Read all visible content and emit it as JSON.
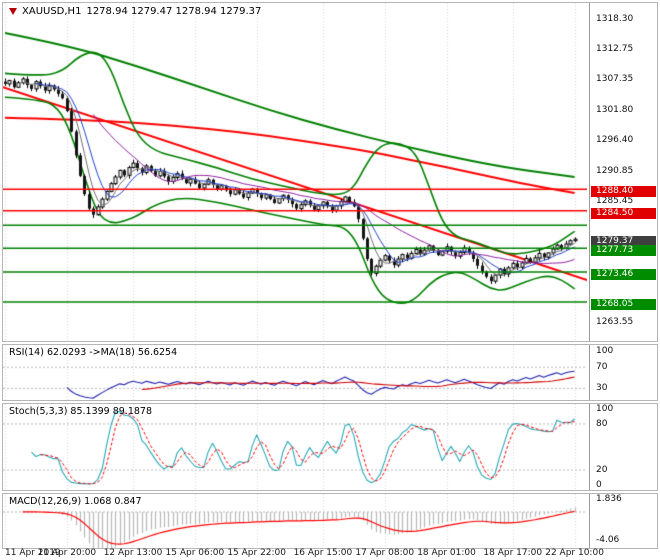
{
  "window": {
    "title": "XAUUSD,H1",
    "ohlc": "1278.94 1279.47 1278.94 1279.37"
  },
  "colors": {
    "bull": "#ffffff",
    "bear": "#141414",
    "wick": "#000000",
    "bollinger": "#008000",
    "ma_green": "#008000",
    "ma_red": "#ff0000",
    "trendline_red": "#ff0000",
    "level_red": "#ff0000",
    "level_green": "#008000",
    "ma_fast_blue": "#2040d0",
    "ma_fast_purple": "#9020a0",
    "ma_fast_gray": "#707070",
    "rsi_line": "#2020b0",
    "rsi_ma": "#d00000",
    "stoch_main": "#2aa8b8",
    "stoch_signal": "#ff0000",
    "macd_hist": "#b8b8b8",
    "macd_signal": "#ff0000",
    "grid": "#d8d8d8",
    "dotted_level": "#b8b8b8"
  },
  "price_axis": {
    "range_top": 1322,
    "range_bottom": 1261,
    "plain_labels": [
      "1318.30",
      "1312.75",
      "1307.35",
      "1301.80",
      "1296.40",
      "1290.85",
      "1285.45",
      "1263.55"
    ],
    "badges": [
      {
        "label": "1288.40",
        "price": 1288.4,
        "type": "red"
      },
      {
        "label": "1284.50",
        "price": 1284.5,
        "type": "red"
      },
      {
        "label": "1279.37",
        "price": 1279.37,
        "type": "dark"
      },
      {
        "label": "1277.73",
        "price": 1277.73,
        "type": "green"
      },
      {
        "label": "1273.46",
        "price": 1273.46,
        "type": "green"
      },
      {
        "label": "1268.05",
        "price": 1268.05,
        "type": "green"
      }
    ]
  },
  "time_axis": {
    "labels": [
      "11 Apr 2019",
      "11 Apr 20:00",
      "12 Apr 13:00",
      "15 Apr 06:00",
      "15 Apr 22:00",
      "16 Apr 15:00",
      "17 Apr 08:00",
      "18 Apr 01:00",
      "18 Apr 17:00",
      "22 Apr 10:00"
    ]
  },
  "chart_data": [
    {
      "type": "candlestick",
      "title": "XAUUSD,H1",
      "symbol": "XAUUSD",
      "timeframe": "H1",
      "ylim": [
        1261,
        1322
      ],
      "closes": [
        1307.4,
        1308.0,
        1306.8,
        1307.6,
        1308.3,
        1307.2,
        1306.5,
        1307.8,
        1307.0,
        1306.2,
        1307.1,
        1306.4,
        1305.6,
        1304.8,
        1302.5,
        1298.8,
        1294.5,
        1290.8,
        1287.5,
        1284.9,
        1283.8,
        1285.2,
        1286.6,
        1288.0,
        1289.4,
        1290.6,
        1291.8,
        1290.9,
        1292.3,
        1293.1,
        1292.2,
        1291.4,
        1292.6,
        1291.7,
        1290.8,
        1291.6,
        1290.7,
        1289.8,
        1290.5,
        1291.2,
        1290.3,
        1289.5,
        1290.2,
        1289.4,
        1288.6,
        1289.3,
        1290.1,
        1289.2,
        1288.4,
        1289.0,
        1288.2,
        1287.5,
        1288.3,
        1287.6,
        1286.9,
        1287.7,
        1288.4,
        1287.6,
        1286.8,
        1287.4,
        1286.6,
        1285.9,
        1286.7,
        1287.3,
        1286.5,
        1285.7,
        1284.9,
        1285.6,
        1286.3,
        1285.5,
        1284.7,
        1285.4,
        1286.1,
        1285.3,
        1284.6,
        1285.4,
        1286.2,
        1287.0,
        1286.1,
        1285.3,
        1283.0,
        1279.5,
        1275.8,
        1273.2,
        1274.5,
        1275.6,
        1276.4,
        1275.5,
        1274.7,
        1275.8,
        1276.6,
        1275.9,
        1276.8,
        1277.5,
        1276.7,
        1277.4,
        1278.2,
        1277.3,
        1276.5,
        1277.2,
        1278.0,
        1277.1,
        1276.3,
        1277.0,
        1277.8,
        1276.9,
        1275.8,
        1274.6,
        1273.5,
        1272.6,
        1271.8,
        1272.9,
        1274.0,
        1273.1,
        1274.2,
        1275.0,
        1274.3,
        1275.1,
        1275.9,
        1275.2,
        1276.0,
        1276.8,
        1276.1,
        1276.9,
        1277.6,
        1278.3,
        1277.7,
        1278.5,
        1279.1,
        1279.37
      ],
      "levels": {
        "red": [
          1288.4,
          1284.5
        ],
        "green": [
          1281.9,
          1277.73,
          1273.46,
          1268.05
        ]
      },
      "overlays": {
        "bollinger_upper": [
          [
            0,
            1309.3
          ],
          [
            8,
            1308.8
          ],
          [
            13,
            1309.6
          ],
          [
            17,
            1312.6
          ],
          [
            21,
            1313.4
          ],
          [
            24,
            1310.2
          ],
          [
            27,
            1303.5
          ],
          [
            30,
            1298.0
          ],
          [
            34,
            1295.2
          ],
          [
            40,
            1294.0
          ],
          [
            48,
            1292.3
          ],
          [
            56,
            1290.2
          ],
          [
            64,
            1288.8
          ],
          [
            70,
            1287.7
          ],
          [
            76,
            1287.3
          ],
          [
            79,
            1288.6
          ],
          [
            82,
            1293.2
          ],
          [
            85,
            1296.4
          ],
          [
            89,
            1296.9
          ],
          [
            93,
            1295.2
          ],
          [
            96,
            1289.0
          ],
          [
            99,
            1282.5
          ],
          [
            102,
            1279.8
          ],
          [
            106,
            1279.0
          ],
          [
            110,
            1277.8
          ],
          [
            114,
            1276.6
          ],
          [
            118,
            1276.9
          ],
          [
            122,
            1277.6
          ],
          [
            125,
            1278.6
          ],
          [
            129,
            1280.8
          ]
        ],
        "bollinger_lower": [
          [
            0,
            1305.0
          ],
          [
            8,
            1304.6
          ],
          [
            12,
            1303.2
          ],
          [
            15,
            1298.5
          ],
          [
            18,
            1290.5
          ],
          [
            21,
            1283.8
          ],
          [
            24,
            1282.2
          ],
          [
            27,
            1282.6
          ],
          [
            30,
            1283.6
          ],
          [
            34,
            1285.6
          ],
          [
            40,
            1287.0
          ],
          [
            48,
            1286.1
          ],
          [
            56,
            1284.6
          ],
          [
            62,
            1283.6
          ],
          [
            68,
            1282.6
          ],
          [
            73,
            1281.9
          ],
          [
            77,
            1281.6
          ],
          [
            80,
            1278.5
          ],
          [
            83,
            1272.0
          ],
          [
            86,
            1268.5
          ],
          [
            90,
            1267.6
          ],
          [
            93,
            1268.6
          ],
          [
            96,
            1271.2
          ],
          [
            99,
            1272.9
          ],
          [
            103,
            1273.6
          ],
          [
            107,
            1271.9
          ],
          [
            110,
            1270.4
          ],
          [
            113,
            1270.1
          ],
          [
            116,
            1271.1
          ],
          [
            120,
            1272.3
          ],
          [
            123,
            1272.8
          ],
          [
            126,
            1272.1
          ],
          [
            129,
            1270.4
          ]
        ],
        "ma_green_slow": [
          [
            0,
            1316.6
          ],
          [
            15,
            1314.2
          ],
          [
            30,
            1310.6
          ],
          [
            45,
            1306.6
          ],
          [
            60,
            1302.6
          ],
          [
            75,
            1299.2
          ],
          [
            90,
            1296.2
          ],
          [
            105,
            1293.6
          ],
          [
            115,
            1292.1
          ],
          [
            129,
            1290.6
          ]
        ],
        "ma_red_slow": [
          [
            0,
            1301.3
          ],
          [
            15,
            1301.0
          ],
          [
            30,
            1300.4
          ],
          [
            45,
            1299.4
          ],
          [
            60,
            1298.0
          ],
          [
            75,
            1296.2
          ],
          [
            85,
            1294.8
          ],
          [
            95,
            1293.2
          ],
          [
            105,
            1291.5
          ],
          [
            115,
            1289.8
          ],
          [
            122,
            1288.7
          ],
          [
            129,
            1287.7
          ]
        ],
        "trendline_red": {
          "from_price": 1306.8,
          "to_price": 1272.0
        }
      }
    },
    {
      "type": "line",
      "name": "RSI",
      "label": "RSI(14) 62.0293 ->MA(18) 56.6254",
      "period": 14,
      "ma_period": 18,
      "value": 62.0293,
      "ma_value": 56.6254,
      "levels": [
        70,
        30
      ],
      "axis_labels": [
        "100",
        "70",
        "30"
      ],
      "range": [
        0,
        100
      ]
    },
    {
      "type": "line",
      "name": "Stochastic",
      "label": "Stoch(5,3,3) 85.1399 89.1878",
      "k": 5,
      "d": 3,
      "slowing": 3,
      "value": 85.1399,
      "signal_value": 89.1878,
      "levels": [
        80,
        20
      ],
      "axis_labels": [
        "100",
        "80",
        "20",
        "0"
      ],
      "range": [
        0,
        100
      ]
    },
    {
      "type": "macd",
      "name": "MACD",
      "label": "MACD(12,26,9) 1.068 0.847",
      "fast": 12,
      "slow": 26,
      "signal": 9,
      "value": 1.068,
      "signal_value": 0.847,
      "axis_labels": [
        "1.836",
        "-4.06"
      ],
      "range": [
        -5.2,
        2.6
      ]
    }
  ]
}
